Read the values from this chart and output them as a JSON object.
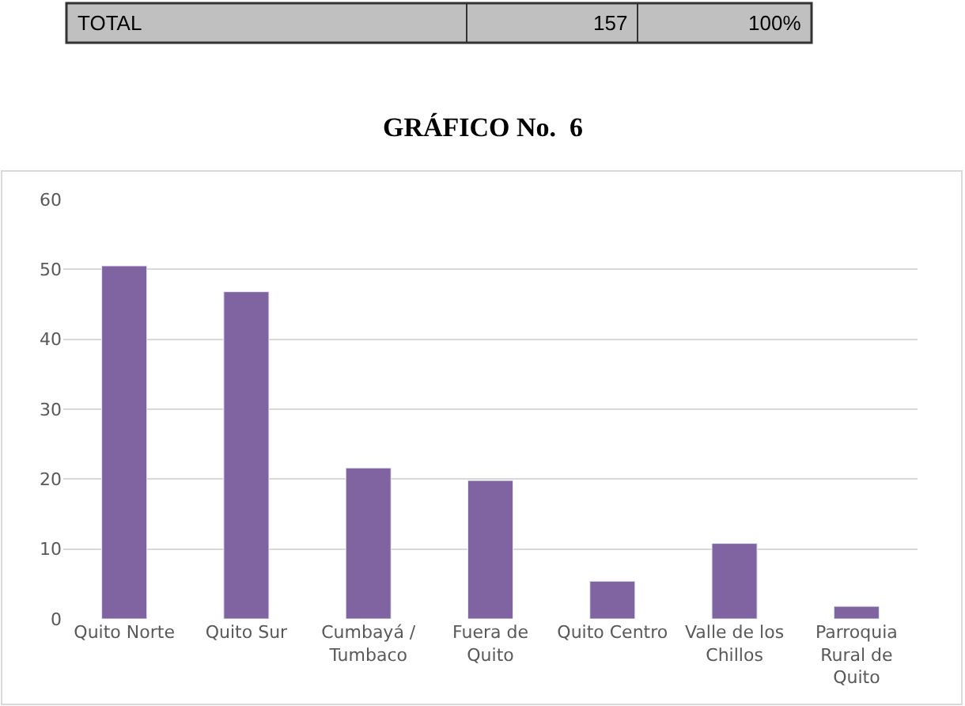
{
  "chart_data": {
    "type": "bar",
    "title": "GRÁFICO No.  6",
    "annotations": [
      "TOTAL",
      "157",
      "100%"
    ],
    "categories": [
      "Quito Norte",
      "Quito Sur",
      "Cumbayá / Tumbaco",
      "Fuera de Quito",
      "Quito Centro",
      "Valle de los Chillos",
      "Parroquia Rural de Quito"
    ],
    "values": [
      50.5,
      46.8,
      21.6,
      19.8,
      5.4,
      10.8,
      1.8
    ],
    "color": "#8064a2",
    "ylim": [
      0,
      60
    ],
    "yticks": [
      0,
      10,
      20,
      30,
      40,
      50,
      60
    ],
    "grid": "y",
    "legend": false
  }
}
